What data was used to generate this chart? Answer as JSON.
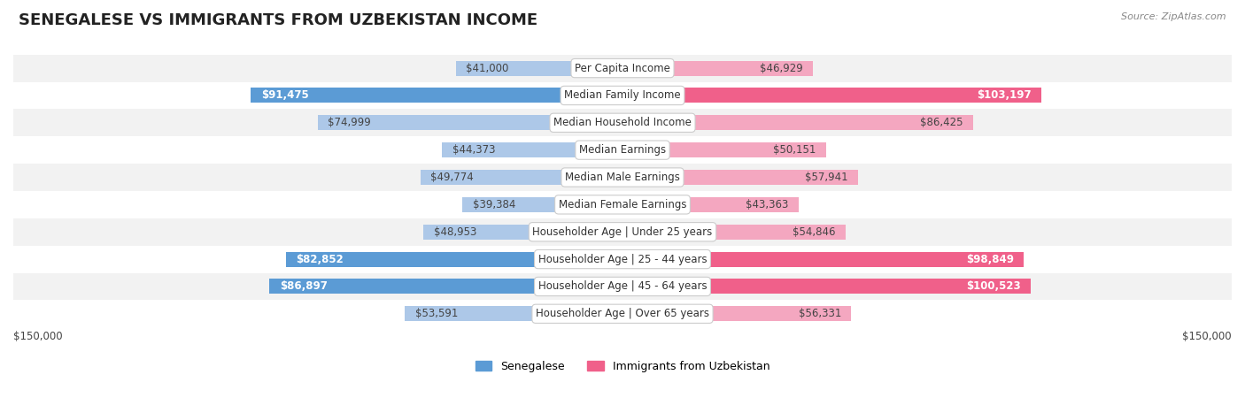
{
  "title": "SENEGALESE VS IMMIGRANTS FROM UZBEKISTAN INCOME",
  "source": "Source: ZipAtlas.com",
  "categories": [
    "Per Capita Income",
    "Median Family Income",
    "Median Household Income",
    "Median Earnings",
    "Median Male Earnings",
    "Median Female Earnings",
    "Householder Age | Under 25 years",
    "Householder Age | 25 - 44 years",
    "Householder Age | 45 - 64 years",
    "Householder Age | Over 65 years"
  ],
  "senegalese_values": [
    41000,
    91475,
    74999,
    44373,
    49774,
    39384,
    48953,
    82852,
    86897,
    53591
  ],
  "uzbekistan_values": [
    46929,
    103197,
    86425,
    50151,
    57941,
    43363,
    54846,
    98849,
    100523,
    56331
  ],
  "senegalese_labels": [
    "$41,000",
    "$91,475",
    "$74,999",
    "$44,373",
    "$49,774",
    "$39,384",
    "$48,953",
    "$82,852",
    "$86,897",
    "$53,591"
  ],
  "uzbekistan_labels": [
    "$46,929",
    "$103,197",
    "$86,425",
    "$50,151",
    "$57,941",
    "$43,363",
    "$54,846",
    "$98,849",
    "$100,523",
    "$56,331"
  ],
  "color_blue_light": "#adc8e8",
  "color_blue_dark": "#5b9bd5",
  "color_pink_light": "#f4a7c0",
  "color_pink_dark": "#f0608a",
  "color_row_bg": [
    "#f2f2f2",
    "#ffffff",
    "#f2f2f2",
    "#ffffff",
    "#f2f2f2",
    "#ffffff",
    "#f2f2f2",
    "#ffffff",
    "#f2f2f2",
    "#ffffff"
  ],
  "max_value": 150000,
  "legend_blue": "Senegalese",
  "legend_pink": "Immigrants from Uzbekistan",
  "highlight_rows": [
    1,
    7,
    8
  ],
  "ylabel_left": "$150,000",
  "ylabel_right": "$150,000",
  "bar_height": 0.55,
  "label_fontsize": 8.5,
  "category_fontsize": 8.5,
  "title_fontsize": 13,
  "source_fontsize": 8,
  "legend_fontsize": 9
}
